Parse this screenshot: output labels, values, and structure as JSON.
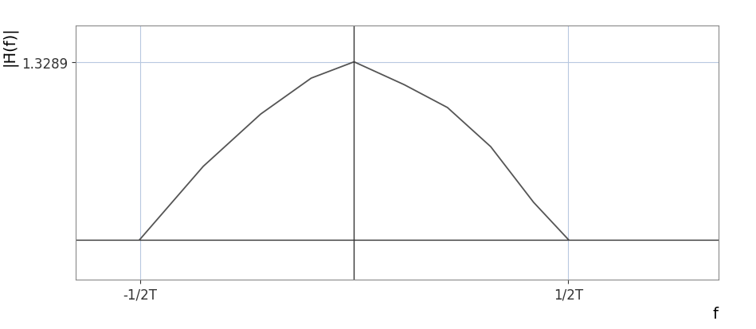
{
  "chart_data": {
    "type": "line",
    "x_label": "f",
    "y_label": "|H̄(f)|",
    "x": [
      -0.5,
      -0.352,
      -0.218,
      -0.1,
      0,
      0.117,
      0.218,
      0.319,
      0.419,
      0.5
    ],
    "values": [
      0,
      0.547,
      0.938,
      1.207,
      1.3289,
      1.158,
      0.987,
      0.694,
      0.278,
      0
    ],
    "color": "#555555",
    "xlim": [
      -0.65,
      0.85
    ],
    "ylim": [
      -0.3,
      1.6
    ],
    "xticks": [
      {
        "value": -0.5,
        "label": "-1/2T"
      },
      {
        "value": 0.5,
        "label": "1/2T"
      }
    ],
    "yticks": [
      1.3289
    ],
    "grid": true
  }
}
